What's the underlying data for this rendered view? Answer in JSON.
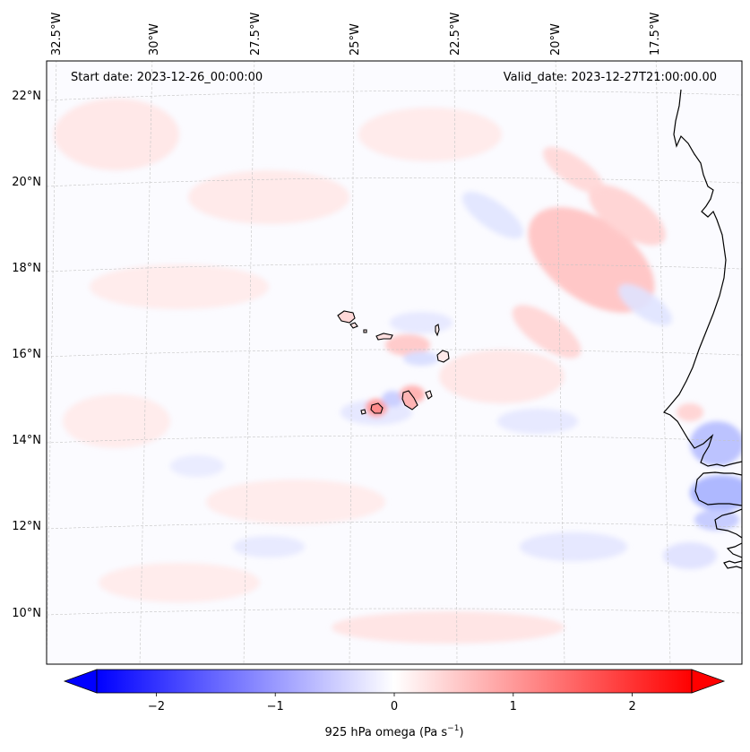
{
  "map": {
    "start_label": "Start date: 2023-12-26_00:00:00",
    "valid_label": "Valid_date: 2023-12-27T21:00:00.00",
    "longitude_labels": [
      "32.5°W",
      "30°W",
      "27.5°W",
      "25°W",
      "22.5°W",
      "20°W",
      "17.5°W"
    ],
    "latitude_labels": [
      "22°N",
      "20°N",
      "18°N",
      "16°N",
      "14°N",
      "12°N",
      "10°N"
    ],
    "field": "925 hPa omega",
    "colormap": "bwr",
    "colors": {
      "negative": "#0000ff",
      "zero": "#ffffff",
      "positive": "#ff0000",
      "coastline": "#000000",
      "gridline": "#b0b0b0"
    },
    "gridlines": true,
    "features": [
      "Cape Verde islands",
      "West African coastline"
    ]
  },
  "colorbar": {
    "ticks": [
      "−2",
      "−1",
      "0",
      "1",
      "2"
    ],
    "tick_values": [
      -2,
      -1,
      0,
      1,
      2
    ],
    "range": [
      -2.5,
      2.5
    ],
    "label_main": "925 hPa omega (Pa s",
    "label_sup": "−1",
    "label_end": ")",
    "extend": "both"
  }
}
